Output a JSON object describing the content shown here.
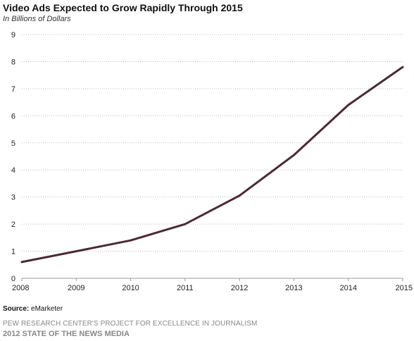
{
  "chart_data": {
    "type": "line",
    "title": "Video Ads Expected to Grow Rapidly Through 2015",
    "subtitle": "In Billions of Dollars",
    "xlabel": "",
    "ylabel": "",
    "x": [
      "2008",
      "2009",
      "2010",
      "2011",
      "2012",
      "2013",
      "2014",
      "2015"
    ],
    "series": [
      {
        "values": [
          0.6,
          1.0,
          1.4,
          2.0,
          3.05,
          4.55,
          6.4,
          7.8
        ],
        "color": "#4a2a34"
      }
    ],
    "ylim": [
      0,
      9
    ],
    "yticks": [
      "0",
      "1",
      "2",
      "3",
      "4",
      "5",
      "6",
      "7",
      "8",
      "9"
    ],
    "grid": true
  },
  "source": {
    "label": "Source:",
    "text": "eMarketer"
  },
  "footer": {
    "org": "PEW RESEARCH CENTER'S PROJECT FOR EXCELLENCE IN JOURNALISM",
    "report": "2012 STATE OF THE NEWS MEDIA"
  }
}
